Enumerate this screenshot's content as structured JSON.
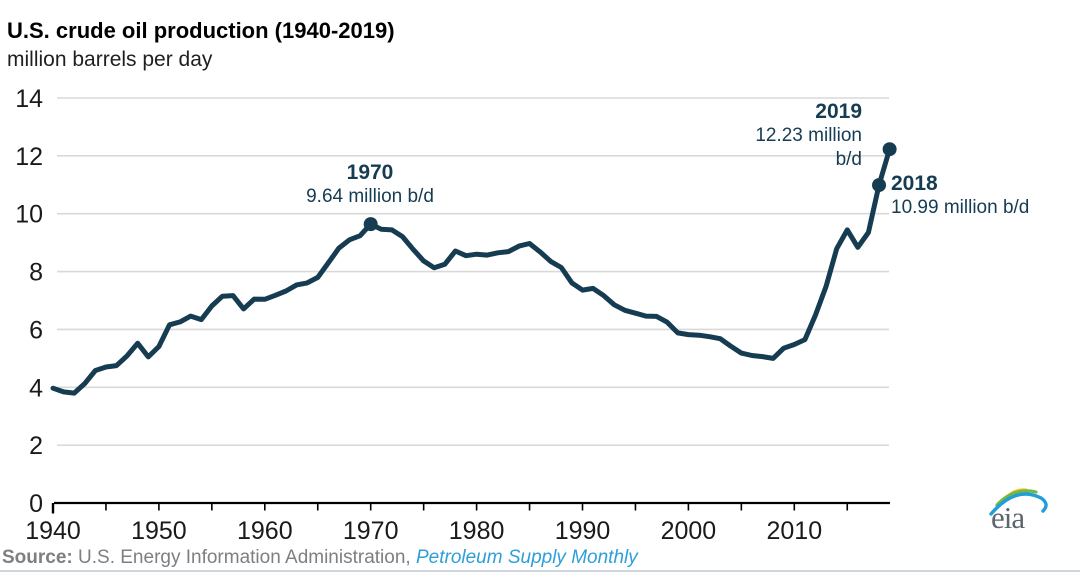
{
  "header": {
    "title": "U.S. crude oil production (1940-2019)",
    "subtitle": "million barrels per day"
  },
  "annotations": {
    "peak1970": {
      "year": "1970",
      "value": "9.64 million b/d"
    },
    "y2019": {
      "year": "2019",
      "value_line1": "12.23 million",
      "value_line2": "b/d"
    },
    "y2018": {
      "year": "2018",
      "value": "10.99 million b/d"
    }
  },
  "footer": {
    "source_label": "Source:",
    "source_text": " U.S. Energy Information Administration, ",
    "source_link": "Petroleum Supply Monthly"
  },
  "logo": {
    "text": "eia"
  },
  "colors": {
    "line": "#163c52",
    "grid": "#d9d9d9",
    "axis": "#000000",
    "tick_label": "#1a1a1a",
    "annotation": "#163c52",
    "source_gray": "#7f7f7f",
    "link_blue": "#2e9fd8",
    "logo_gray": "#5d666d",
    "logo_blue": "#1f9ed9",
    "logo_green": "#74b744",
    "logo_yellow": "#f2c418"
  },
  "chart_data": {
    "type": "line",
    "title": "U.S. crude oil production (1940-2019)",
    "xlabel": "",
    "ylabel": "million barrels per day",
    "ylim": [
      0,
      14
    ],
    "y_ticks": [
      0,
      2,
      4,
      6,
      8,
      10,
      12,
      14
    ],
    "x_tick_labels": [
      1940,
      1950,
      1960,
      1970,
      1980,
      1990,
      2000,
      2010
    ],
    "x_minor_tick_step": 5,
    "grid": "horizontal",
    "legend": "none",
    "x": [
      1940,
      1941,
      1942,
      1943,
      1944,
      1945,
      1946,
      1947,
      1948,
      1949,
      1950,
      1951,
      1952,
      1953,
      1954,
      1955,
      1956,
      1957,
      1958,
      1959,
      1960,
      1961,
      1962,
      1963,
      1964,
      1965,
      1966,
      1967,
      1968,
      1969,
      1970,
      1971,
      1972,
      1973,
      1974,
      1975,
      1976,
      1977,
      1978,
      1979,
      1980,
      1981,
      1982,
      1983,
      1984,
      1985,
      1986,
      1987,
      1988,
      1989,
      1990,
      1991,
      1992,
      1993,
      1994,
      1995,
      1996,
      1997,
      1998,
      1999,
      2000,
      2001,
      2002,
      2003,
      2004,
      2005,
      2006,
      2007,
      2008,
      2009,
      2010,
      2011,
      2012,
      2013,
      2014,
      2015,
      2016,
      2017,
      2018,
      2019
    ],
    "values": [
      3.97,
      3.84,
      3.8,
      4.13,
      4.58,
      4.7,
      4.75,
      5.09,
      5.52,
      5.05,
      5.41,
      6.16,
      6.26,
      6.46,
      6.34,
      6.81,
      7.15,
      7.17,
      6.71,
      7.05,
      7.04,
      7.18,
      7.33,
      7.54,
      7.61,
      7.8,
      8.3,
      8.81,
      9.1,
      9.24,
      9.64,
      9.46,
      9.44,
      9.21,
      8.77,
      8.37,
      8.13,
      8.25,
      8.71,
      8.55,
      8.6,
      8.57,
      8.65,
      8.69,
      8.88,
      8.97,
      8.68,
      8.35,
      8.14,
      7.61,
      7.36,
      7.42,
      7.17,
      6.85,
      6.66,
      6.56,
      6.46,
      6.45,
      6.25,
      5.88,
      5.82,
      5.8,
      5.75,
      5.68,
      5.42,
      5.18,
      5.1,
      5.06,
      5.0,
      5.35,
      5.48,
      5.65,
      6.5,
      7.49,
      8.79,
      9.44,
      8.84,
      9.35,
      10.99,
      12.23
    ],
    "markers": [
      {
        "year": 1970,
        "value": 9.64
      },
      {
        "year": 2018,
        "value": 10.99
      },
      {
        "year": 2019,
        "value": 12.23
      }
    ]
  }
}
